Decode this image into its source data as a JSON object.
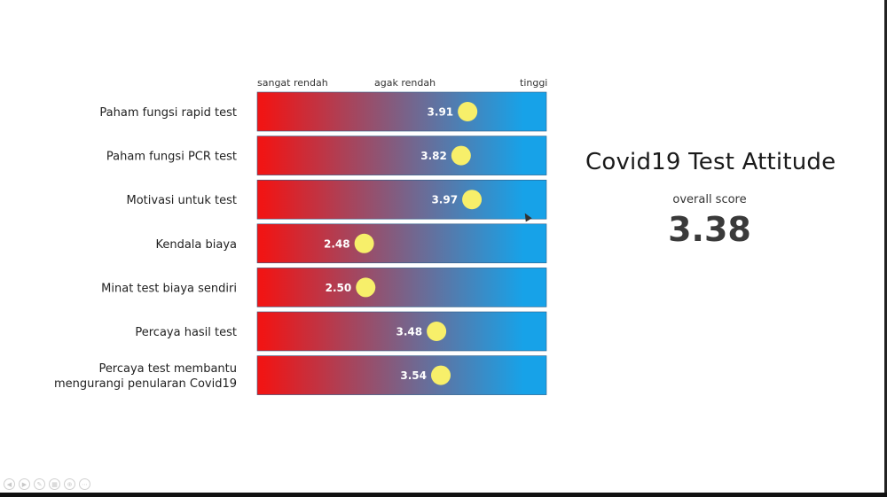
{
  "chart_data": {
    "type": "scatter",
    "title": "",
    "xlabel": "",
    "ylabel": "",
    "scale_labels": [
      "sangat rendah",
      "agak rendah",
      "tinggi"
    ],
    "xlim": [
      1,
      5
    ],
    "gradient_colors": [
      "#f01515",
      "#17a2e8"
    ],
    "marker_color": "#f7ef6a",
    "categories": [
      "Paham fungsi rapid test",
      "Paham fungsi PCR test",
      "Motivasi untuk test",
      "Kendala biaya",
      "Minat test biaya sendiri",
      "Percaya hasil test",
      [
        "Percaya test membantu",
        "mengurangi penularan Covid19"
      ]
    ],
    "values": [
      3.91,
      3.82,
      3.97,
      2.48,
      2.5,
      3.48,
      3.54
    ],
    "value_labels": [
      "3.91",
      "3.82",
      "3.97",
      "2.48",
      "2.50",
      "3.48",
      "3.54"
    ]
  },
  "summary": {
    "title": "Covid19 Test Attitude",
    "subtitle": "overall score",
    "score": "3.38"
  },
  "controls": [
    {
      "name": "previous-icon",
      "glyph": "◀"
    },
    {
      "name": "next-icon",
      "glyph": "▶"
    },
    {
      "name": "pen-icon",
      "glyph": "✎"
    },
    {
      "name": "slides-icon",
      "glyph": "▦"
    },
    {
      "name": "zoom-icon",
      "glyph": "⊕"
    },
    {
      "name": "more-icon",
      "glyph": "⋯"
    }
  ]
}
